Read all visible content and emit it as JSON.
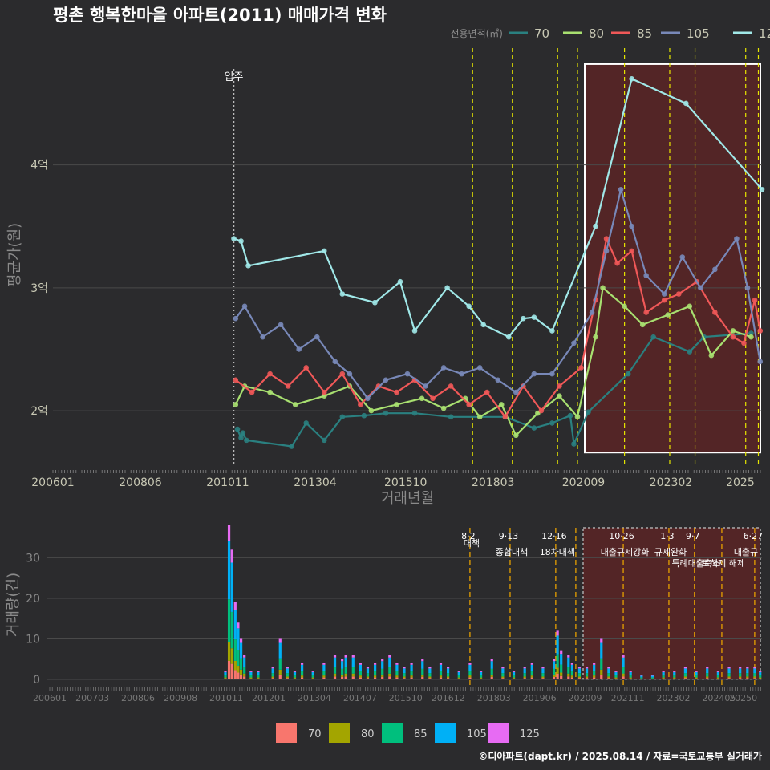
{
  "title": "평촌 행복한마을 아파트(2011) 매매가격 변화",
  "footer": "©디아파트(dapt.kr) / 2025.08.14 / 자료=국토교통부 실거래가",
  "colors": {
    "background": "#2b2b2d",
    "grid": "#4a4a4a",
    "title": "#ffffff",
    "axis_text": "#c8c8b4",
    "axis_title": "#8a8a8a",
    "policy_line": "#e6e600",
    "volume_policy_line": "#e6a000",
    "highlight_fill": "#5a2426",
    "highlight_border": "#ffffff"
  },
  "chart_data": [
    {
      "type": "line",
      "name": "price",
      "title": "평촌 행복한마을 아파트(2011) 매매가격 변화",
      "xlabel": "거래년월",
      "ylabel": "평균가(원)",
      "x_ticks": [
        "200601",
        "200806",
        "201011",
        "201304",
        "201510",
        "201803",
        "202009",
        "202302",
        "2025"
      ],
      "y_ticks": [
        {
          "value": 2,
          "label": "2억"
        },
        {
          "value": 3,
          "label": "3억"
        },
        {
          "value": 4,
          "label": "4억"
        }
      ],
      "xlim": [
        2006.0,
        2025.6
      ],
      "ylim": [
        1.57,
        4.95
      ],
      "legend_title": "전용면적(㎡)",
      "legend_position": "top-right",
      "move_in_label": "입주",
      "move_in_x": 2011.0,
      "policy_x": [
        2017.6,
        2018.7,
        2019.95,
        2020.5,
        2021.8,
        2023.05,
        2023.75,
        2025.15,
        2025.5
      ],
      "highlight_range": [
        2020.7,
        2025.6
      ],
      "series": [
        {
          "name": "70",
          "color": "#2a8080",
          "points": [
            [
              2011.1,
              1.85
            ],
            [
              2011.2,
              1.78
            ],
            [
              2011.25,
              1.82
            ],
            [
              2011.35,
              1.76
            ],
            [
              2012.6,
              1.71
            ],
            [
              2013.0,
              1.9
            ],
            [
              2013.5,
              1.76
            ],
            [
              2014.0,
              1.95
            ],
            [
              2014.6,
              1.96
            ],
            [
              2015.2,
              1.98
            ],
            [
              2016.0,
              1.98
            ],
            [
              2017.0,
              1.95
            ],
            [
              2018.5,
              1.95
            ],
            [
              2019.3,
              1.86
            ],
            [
              2019.8,
              1.9
            ],
            [
              2020.3,
              1.96
            ],
            [
              2020.4,
              1.73
            ],
            [
              2020.8,
              1.99
            ],
            [
              2021.9,
              2.3
            ],
            [
              2022.6,
              2.6
            ],
            [
              2023.6,
              2.48
            ],
            [
              2024.0,
              2.6
            ],
            [
              2025.3,
              2.63
            ]
          ]
        },
        {
          "name": "80",
          "color": "#a8e070",
          "points": [
            [
              2011.05,
              2.05
            ],
            [
              2011.3,
              2.2
            ],
            [
              2012.0,
              2.15
            ],
            [
              2012.7,
              2.05
            ],
            [
              2013.5,
              2.12
            ],
            [
              2014.2,
              2.2
            ],
            [
              2014.8,
              2.0
            ],
            [
              2015.5,
              2.05
            ],
            [
              2016.2,
              2.1
            ],
            [
              2016.8,
              2.02
            ],
            [
              2017.4,
              2.1
            ],
            [
              2017.8,
              1.95
            ],
            [
              2018.4,
              2.05
            ],
            [
              2018.8,
              1.8
            ],
            [
              2019.4,
              1.98
            ],
            [
              2020.0,
              2.12
            ],
            [
              2020.5,
              1.95
            ],
            [
              2021.0,
              2.6
            ],
            [
              2021.2,
              3.0
            ],
            [
              2021.8,
              2.85
            ],
            [
              2022.3,
              2.7
            ],
            [
              2023.0,
              2.78
            ],
            [
              2023.6,
              2.85
            ],
            [
              2024.2,
              2.45
            ],
            [
              2024.8,
              2.65
            ],
            [
              2025.3,
              2.6
            ]
          ]
        },
        {
          "name": "85",
          "color": "#f05858",
          "points": [
            [
              2011.05,
              2.25
            ],
            [
              2011.5,
              2.15
            ],
            [
              2012.0,
              2.3
            ],
            [
              2012.5,
              2.2
            ],
            [
              2013.0,
              2.35
            ],
            [
              2013.5,
              2.15
            ],
            [
              2014.0,
              2.3
            ],
            [
              2014.5,
              2.05
            ],
            [
              2015.0,
              2.2
            ],
            [
              2015.5,
              2.15
            ],
            [
              2016.0,
              2.25
            ],
            [
              2016.5,
              2.1
            ],
            [
              2017.0,
              2.2
            ],
            [
              2017.5,
              2.05
            ],
            [
              2018.0,
              2.15
            ],
            [
              2018.5,
              1.95
            ],
            [
              2019.0,
              2.2
            ],
            [
              2019.5,
              2.0
            ],
            [
              2020.0,
              2.2
            ],
            [
              2020.6,
              2.35
            ],
            [
              2021.0,
              2.9
            ],
            [
              2021.3,
              3.4
            ],
            [
              2021.6,
              3.2
            ],
            [
              2022.0,
              3.3
            ],
            [
              2022.4,
              2.8
            ],
            [
              2022.9,
              2.9
            ],
            [
              2023.3,
              2.95
            ],
            [
              2023.8,
              3.05
            ],
            [
              2024.3,
              2.8
            ],
            [
              2024.8,
              2.6
            ],
            [
              2025.1,
              2.55
            ],
            [
              2025.4,
              2.9
            ],
            [
              2025.55,
              2.65
            ]
          ]
        },
        {
          "name": "105",
          "color": "#7888b8",
          "points": [
            [
              2011.05,
              2.75
            ],
            [
              2011.3,
              2.85
            ],
            [
              2011.8,
              2.6
            ],
            [
              2012.3,
              2.7
            ],
            [
              2012.8,
              2.5
            ],
            [
              2013.3,
              2.6
            ],
            [
              2013.8,
              2.4
            ],
            [
              2014.2,
              2.3
            ],
            [
              2014.7,
              2.1
            ],
            [
              2015.2,
              2.25
            ],
            [
              2015.8,
              2.3
            ],
            [
              2016.3,
              2.2
            ],
            [
              2016.8,
              2.35
            ],
            [
              2017.3,
              2.3
            ],
            [
              2017.8,
              2.35
            ],
            [
              2018.3,
              2.25
            ],
            [
              2018.8,
              2.15
            ],
            [
              2019.3,
              2.3
            ],
            [
              2019.8,
              2.3
            ],
            [
              2020.4,
              2.55
            ],
            [
              2020.9,
              2.8
            ],
            [
              2021.3,
              3.3
            ],
            [
              2021.7,
              3.8
            ],
            [
              2022.0,
              3.5
            ],
            [
              2022.4,
              3.1
            ],
            [
              2022.9,
              2.95
            ],
            [
              2023.4,
              3.25
            ],
            [
              2023.9,
              3.0
            ],
            [
              2024.3,
              3.15
            ],
            [
              2024.9,
              3.4
            ],
            [
              2025.2,
              3.0
            ],
            [
              2025.55,
              2.4
            ]
          ]
        },
        {
          "name": "125",
          "color": "#a0e8e8",
          "points": [
            [
              2011.0,
              3.4
            ],
            [
              2011.2,
              3.38
            ],
            [
              2011.4,
              3.18
            ],
            [
              2013.5,
              3.3
            ],
            [
              2014.0,
              2.95
            ],
            [
              2014.9,
              2.88
            ],
            [
              2015.6,
              3.05
            ],
            [
              2016.0,
              2.65
            ],
            [
              2016.9,
              3.0
            ],
            [
              2017.5,
              2.85
            ],
            [
              2017.9,
              2.7
            ],
            [
              2018.6,
              2.6
            ],
            [
              2019.0,
              2.75
            ],
            [
              2019.3,
              2.76
            ],
            [
              2019.8,
              2.65
            ],
            [
              2021.0,
              3.5
            ],
            [
              2022.0,
              4.7
            ],
            [
              2023.5,
              4.5
            ],
            [
              2025.6,
              3.8
            ]
          ]
        }
      ]
    },
    {
      "type": "bar",
      "name": "volume",
      "xlabel": "",
      "ylabel": "거래량(건)",
      "x_ticks": [
        "200601",
        "200703",
        "200806",
        "200908",
        "201011",
        "201201",
        "201304",
        "201407",
        "201510",
        "201612",
        "201803",
        "201906",
        "202009",
        "202111",
        "202302",
        "202405",
        "20250"
      ],
      "y_ticks": [
        0,
        10,
        20,
        30
      ],
      "xlim": [
        2006.0,
        2025.6
      ],
      "ylim": [
        0,
        38
      ],
      "highlight_range": [
        2020.7,
        2025.6
      ],
      "series_names": [
        "70",
        "80",
        "85",
        "105",
        "125"
      ],
      "series_colors": [
        "#f8766d",
        "#a3a500",
        "#00bf7d",
        "#00b0f6",
        "#e76bf3"
      ],
      "monthly_totals": [
        [
          2010.9,
          2
        ],
        [
          2011.0,
          38
        ],
        [
          2011.08,
          32
        ],
        [
          2011.17,
          19
        ],
        [
          2011.25,
          14
        ],
        [
          2011.33,
          10
        ],
        [
          2011.42,
          6
        ],
        [
          2011.6,
          2
        ],
        [
          2011.8,
          2
        ],
        [
          2012.2,
          3
        ],
        [
          2012.4,
          10
        ],
        [
          2012.6,
          3
        ],
        [
          2012.8,
          2
        ],
        [
          2013.0,
          4
        ],
        [
          2013.3,
          2
        ],
        [
          2013.6,
          4
        ],
        [
          2013.9,
          6
        ],
        [
          2014.1,
          5
        ],
        [
          2014.2,
          6
        ],
        [
          2014.4,
          6
        ],
        [
          2014.6,
          4
        ],
        [
          2014.8,
          3
        ],
        [
          2015.0,
          4
        ],
        [
          2015.2,
          5
        ],
        [
          2015.4,
          6
        ],
        [
          2015.6,
          4
        ],
        [
          2015.8,
          3
        ],
        [
          2016.0,
          4
        ],
        [
          2016.3,
          5
        ],
        [
          2016.5,
          3
        ],
        [
          2016.8,
          4
        ],
        [
          2017.0,
          3
        ],
        [
          2017.3,
          2
        ],
        [
          2017.6,
          4
        ],
        [
          2017.9,
          2
        ],
        [
          2018.2,
          5
        ],
        [
          2018.5,
          3
        ],
        [
          2018.8,
          2
        ],
        [
          2019.1,
          3
        ],
        [
          2019.3,
          4
        ],
        [
          2019.6,
          3
        ],
        [
          2019.9,
          5
        ],
        [
          2020.0,
          12
        ],
        [
          2020.1,
          7
        ],
        [
          2020.3,
          6
        ],
        [
          2020.4,
          4
        ],
        [
          2020.6,
          3
        ],
        [
          2020.8,
          3
        ],
        [
          2021.0,
          4
        ],
        [
          2021.2,
          10
        ],
        [
          2021.4,
          3
        ],
        [
          2021.6,
          2
        ],
        [
          2021.8,
          6
        ],
        [
          2022.0,
          2
        ],
        [
          2022.3,
          1
        ],
        [
          2022.6,
          1
        ],
        [
          2022.9,
          2
        ],
        [
          2023.2,
          2
        ],
        [
          2023.5,
          3
        ],
        [
          2023.8,
          2
        ],
        [
          2024.1,
          3
        ],
        [
          2024.4,
          2
        ],
        [
          2024.7,
          3
        ],
        [
          2025.0,
          3
        ],
        [
          2025.2,
          3
        ],
        [
          2025.4,
          3
        ],
        [
          2025.55,
          2
        ]
      ],
      "policies": [
        {
          "x": 2017.6,
          "date": "8·2",
          "name": "대책"
        },
        {
          "x": 2018.7,
          "date": "9·13",
          "name": "종합대책"
        },
        {
          "x": 2019.95,
          "date": "12·16",
          "name": "18차대책"
        },
        {
          "x": 2020.5,
          "date": "",
          "name": ""
        },
        {
          "x": 2021.8,
          "date": "10·26",
          "name": "대출규제강화"
        },
        {
          "x": 2023.05,
          "date": "1·3",
          "name": "규제완화"
        },
        {
          "x": 2023.75,
          "date": "9·7",
          "name": "특례대출축소"
        },
        {
          "x": 2024.5,
          "date": "",
          "name": "토허제 해제"
        },
        {
          "x": 2025.4,
          "date": "6·27",
          "name": "대출규"
        }
      ]
    }
  ]
}
